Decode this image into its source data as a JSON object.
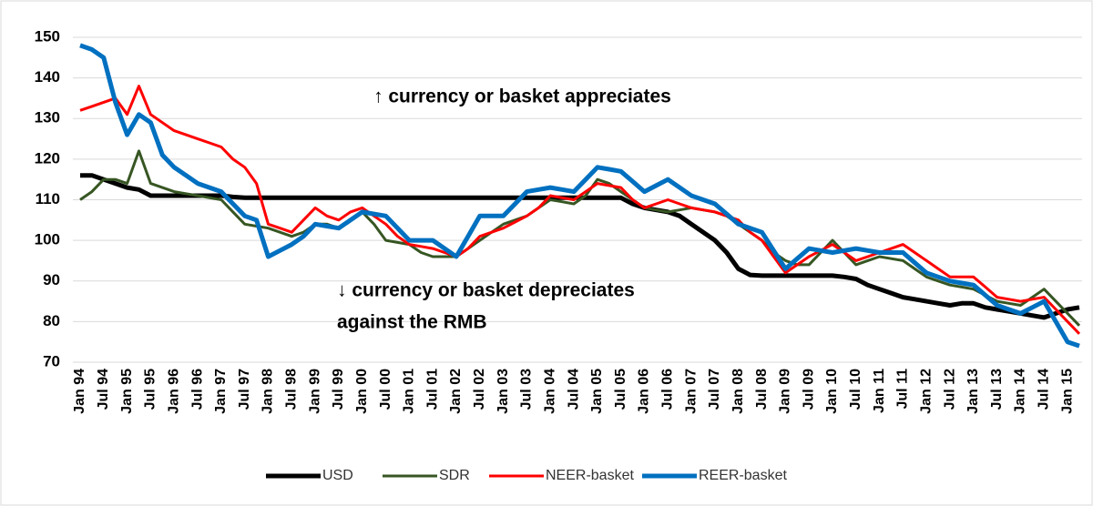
{
  "chart_data": {
    "type": "line",
    "annotations": [
      "↑ currency or basket appreciates",
      "↓ currency or basket depreciates",
      "against the RMB"
    ],
    "categories": [
      "Jan 94",
      null,
      "Jul 94",
      null,
      "Jan 95",
      null,
      "Jul 95",
      null,
      "Jan 96",
      null,
      "Jul 96",
      null,
      "Jan 97",
      null,
      "Jul 97",
      null,
      "Jan 98",
      null,
      "Jul 98",
      null,
      "Jan 99",
      null,
      "Jul 99",
      null,
      "Jan 00",
      null,
      "Jul 00",
      null,
      "Jan 01",
      null,
      "Jul 01",
      null,
      "Jan 02",
      null,
      "Jul 02",
      null,
      "Jan 03",
      null,
      "Jul 03",
      null,
      "Jan 04",
      null,
      "Jul 04",
      null,
      "Jan 05",
      null,
      "Jul 05",
      null,
      "Jan 06",
      null,
      "Jul 06",
      null,
      "Jan 07",
      null,
      "Jul 07",
      null,
      "Jan 08",
      null,
      "Jul 08",
      null,
      "Jan 09",
      null,
      "Jul 09",
      null,
      "Jan 10",
      null,
      "Jul 10",
      null,
      "Jan 11",
      null,
      "Jul 11",
      null,
      "Jan 12",
      null,
      "Jul 12",
      null,
      "Jan 13",
      null,
      "Jul 13",
      null,
      "Jan 14",
      null,
      "Jul 14",
      null,
      "Jan 15",
      null
    ],
    "series": [
      {
        "name": "USD",
        "color": "#000000",
        "width": 5,
        "values": [
          116,
          116,
          115,
          114,
          113,
          112.5,
          111,
          111,
          111,
          111,
          111,
          111,
          111,
          110.7,
          110.5,
          110.5,
          110.5,
          110.5,
          110.5,
          110.5,
          110.5,
          110.5,
          110.5,
          110.5,
          110.5,
          110.5,
          110.5,
          110.5,
          110.5,
          110.5,
          110.5,
          110.5,
          110.5,
          110.5,
          110.5,
          110.5,
          110.5,
          110.5,
          110.5,
          110.5,
          110.5,
          110.5,
          110.5,
          110.5,
          110.5,
          110.5,
          110.5,
          109,
          108,
          107.5,
          107,
          106,
          104,
          102,
          100,
          97,
          93,
          91.5,
          91.3,
          91.3,
          91.3,
          91.3,
          91.3,
          91.3,
          91.3,
          91,
          90.5,
          89,
          88,
          87,
          86,
          85.5,
          85,
          84.5,
          84,
          84.5,
          84.5,
          83.5,
          83,
          82.5,
          82,
          81.5,
          81,
          82,
          83,
          83.5
        ]
      },
      {
        "name": "SDR",
        "color": "#375623",
        "width": 3,
        "values": [
          110,
          112,
          115,
          115,
          114,
          122,
          114,
          113,
          112,
          111.5,
          111,
          110.5,
          110,
          107,
          104,
          103.5,
          103,
          102,
          101,
          102,
          104,
          104,
          103,
          105,
          107,
          104,
          100,
          99.5,
          99,
          97,
          96,
          96,
          96,
          98,
          100,
          102,
          104,
          105,
          106,
          108,
          110,
          109.5,
          109,
          111,
          115,
          114,
          112,
          110,
          108,
          107.5,
          107,
          107.5,
          108,
          107.5,
          107,
          106,
          104,
          102,
          100,
          97,
          95,
          94,
          94,
          97,
          100,
          97,
          94,
          95,
          96,
          95.5,
          95,
          93,
          91,
          90,
          89,
          88.5,
          88,
          86.5,
          85,
          84.5,
          84,
          86,
          88,
          85,
          82,
          79
        ]
      },
      {
        "name": "NEER-basket",
        "color": "#ff0000",
        "width": 3,
        "values": [
          132,
          133,
          134,
          135,
          131,
          138,
          131,
          129,
          127,
          126,
          125,
          124,
          123,
          120,
          118,
          114,
          104,
          103,
          102,
          105,
          108,
          106,
          105,
          107,
          108,
          106,
          104,
          101,
          99,
          98.5,
          98,
          97,
          96,
          98,
          101,
          102,
          103,
          104.5,
          106,
          108,
          111,
          110.5,
          110,
          112,
          114,
          113.5,
          113,
          110,
          108,
          109,
          110,
          109,
          108,
          107.5,
          107,
          106,
          105,
          102,
          100,
          96,
          92,
          94,
          96,
          97.5,
          99,
          97,
          95,
          96,
          97,
          98,
          99,
          97,
          95,
          93,
          91,
          91,
          91,
          88.5,
          86,
          85.5,
          85,
          85.5,
          86,
          83,
          80,
          77
        ]
      },
      {
        "name": "REER-basket",
        "color": "#0070c0",
        "width": 5,
        "values": [
          148,
          147,
          145,
          134,
          126,
          131,
          129,
          121,
          118,
          116,
          114,
          113,
          112,
          109,
          106,
          105,
          96,
          97.5,
          99,
          101,
          104,
          103.5,
          103,
          105,
          107,
          106.5,
          106,
          103,
          100,
          100,
          100,
          98,
          96,
          101,
          106,
          106,
          106,
          109,
          112,
          112.5,
          113,
          112.5,
          112,
          115,
          118,
          117.5,
          117,
          114.5,
          112,
          113.5,
          115,
          113,
          111,
          110,
          109,
          106.5,
          104,
          103,
          102,
          97.5,
          93,
          95.5,
          98,
          97.5,
          97,
          97.5,
          98,
          97.5,
          97,
          97,
          97,
          94.5,
          92,
          91,
          90,
          89.5,
          89,
          86.5,
          84,
          83,
          82,
          83.5,
          85,
          80,
          75,
          74
        ]
      }
    ],
    "ylim": [
      70,
      150
    ],
    "yticks": [
      70,
      80,
      90,
      100,
      110,
      120,
      130,
      140,
      150
    ],
    "grid": true,
    "legend": "bottom"
  }
}
